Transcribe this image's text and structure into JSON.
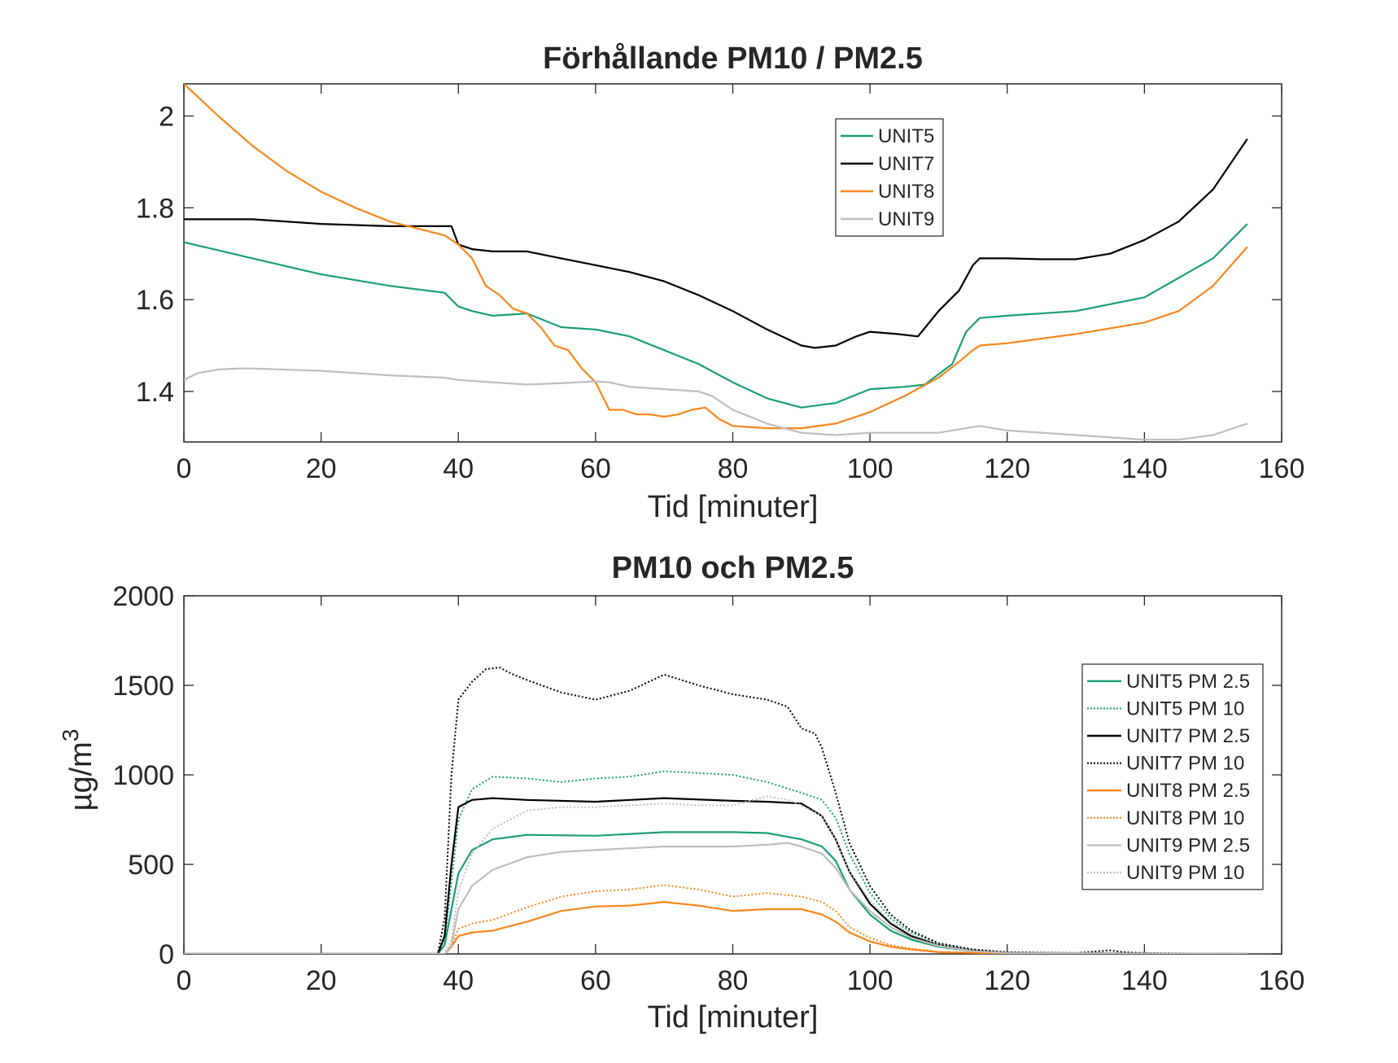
{
  "chart_data": [
    {
      "type": "line",
      "title": "Förhållande PM10 / PM2.5",
      "xlabel": "Tid [minuter]",
      "ylabel": "",
      "xlim": [
        0,
        160
      ],
      "ylim": [
        1.29,
        2.07
      ],
      "xticks": [
        "0",
        "20",
        "40",
        "60",
        "80",
        "100",
        "120",
        "140",
        "160"
      ],
      "yticks": [
        "1.4",
        "1.6",
        "1.8",
        "2"
      ],
      "grid": false,
      "legend": "top-right",
      "series": [
        {
          "name": "UNIT5",
          "color": "#1a9e77",
          "dash": "solid",
          "x": [
            0,
            10,
            20,
            30,
            38,
            40,
            42,
            45,
            50,
            55,
            60,
            65,
            70,
            75,
            80,
            85,
            90,
            95,
            100,
            105,
            108,
            112,
            114,
            116,
            120,
            130,
            140,
            150,
            155
          ],
          "y": [
            1.725,
            1.69,
            1.655,
            1.63,
            1.615,
            1.585,
            1.575,
            1.565,
            1.57,
            1.54,
            1.535,
            1.52,
            1.49,
            1.46,
            1.42,
            1.385,
            1.365,
            1.375,
            1.405,
            1.41,
            1.415,
            1.46,
            1.53,
            1.56,
            1.565,
            1.575,
            1.605,
            1.69,
            1.765
          ]
        },
        {
          "name": "UNIT7",
          "color": "#000000",
          "dash": "solid",
          "x": [
            0,
            5,
            10,
            20,
            30,
            39,
            40,
            42,
            45,
            50,
            55,
            60,
            65,
            70,
            75,
            80,
            85,
            90,
            92,
            95,
            98,
            100,
            104,
            107,
            110,
            113,
            115,
            116,
            120,
            125,
            130,
            135,
            140,
            145,
            150,
            155
          ],
          "y": [
            1.775,
            1.775,
            1.775,
            1.765,
            1.76,
            1.76,
            1.72,
            1.71,
            1.705,
            1.705,
            1.69,
            1.675,
            1.66,
            1.64,
            1.61,
            1.575,
            1.535,
            1.5,
            1.495,
            1.5,
            1.52,
            1.53,
            1.525,
            1.52,
            1.575,
            1.62,
            1.675,
            1.69,
            1.69,
            1.688,
            1.688,
            1.7,
            1.73,
            1.77,
            1.84,
            1.95
          ]
        },
        {
          "name": "UNIT8",
          "color": "#f7861c",
          "dash": "solid",
          "x": [
            0,
            5,
            10,
            15,
            20,
            25,
            30,
            38,
            40,
            42,
            44,
            46,
            48,
            50,
            52,
            54,
            56,
            58,
            60,
            62,
            64,
            66,
            68,
            70,
            72,
            74,
            76,
            78,
            80,
            85,
            90,
            95,
            100,
            105,
            110,
            113,
            115,
            116,
            120,
            130,
            140,
            145,
            150,
            155
          ],
          "y": [
            2.07,
            2.0,
            1.935,
            1.88,
            1.835,
            1.8,
            1.77,
            1.74,
            1.72,
            1.69,
            1.63,
            1.61,
            1.58,
            1.57,
            1.54,
            1.5,
            1.49,
            1.45,
            1.42,
            1.36,
            1.36,
            1.35,
            1.35,
            1.345,
            1.35,
            1.36,
            1.365,
            1.34,
            1.325,
            1.32,
            1.32,
            1.33,
            1.355,
            1.39,
            1.43,
            1.465,
            1.49,
            1.5,
            1.505,
            1.525,
            1.55,
            1.575,
            1.63,
            1.715
          ]
        },
        {
          "name": "UNIT9",
          "color": "#bdbdbd",
          "dash": "solid",
          "x": [
            0,
            2,
            5,
            8,
            10,
            20,
            30,
            38,
            40,
            45,
            50,
            55,
            60,
            62,
            65,
            70,
            75,
            77,
            80,
            85,
            90,
            95,
            100,
            105,
            110,
            114,
            116,
            120,
            130,
            140,
            145,
            150,
            155
          ],
          "y": [
            1.425,
            1.44,
            1.448,
            1.45,
            1.45,
            1.445,
            1.435,
            1.43,
            1.425,
            1.42,
            1.415,
            1.418,
            1.422,
            1.42,
            1.41,
            1.405,
            1.4,
            1.39,
            1.36,
            1.33,
            1.31,
            1.305,
            1.31,
            1.31,
            1.31,
            1.32,
            1.325,
            1.315,
            1.305,
            1.295,
            1.295,
            1.305,
            1.33
          ]
        }
      ]
    },
    {
      "type": "line",
      "title": "PM10 och PM2.5",
      "xlabel": "Tid [minuter]",
      "ylabel": "µg/m",
      "ylabel_sup": "3",
      "xlim": [
        0,
        160
      ],
      "ylim": [
        0,
        2000
      ],
      "xticks": [
        "0",
        "20",
        "40",
        "60",
        "80",
        "100",
        "120",
        "140",
        "160"
      ],
      "yticks": [
        "0",
        "500",
        "1000",
        "1500",
        "2000"
      ],
      "grid": false,
      "legend": "right",
      "series": [
        {
          "name": "UNIT5 PM 2.5",
          "color": "#1a9e77",
          "dash": "solid",
          "x": [
            0,
            37,
            38,
            39,
            40,
            42,
            45,
            50,
            60,
            70,
            80,
            85,
            90,
            93,
            95,
            97,
            100,
            103,
            106,
            110,
            115,
            120,
            155
          ],
          "y": [
            0,
            0,
            50,
            250,
            450,
            580,
            640,
            665,
            660,
            680,
            680,
            675,
            640,
            600,
            520,
            360,
            220,
            130,
            80,
            40,
            15,
            5,
            0
          ]
        },
        {
          "name": "UNIT5 PM 10",
          "color": "#1a9e77",
          "dash": "dot",
          "x": [
            0,
            37,
            38,
            39,
            40,
            42,
            45,
            50,
            55,
            60,
            65,
            70,
            75,
            80,
            85,
            90,
            93,
            95,
            97,
            100,
            103,
            106,
            110,
            115,
            120,
            155
          ],
          "y": [
            0,
            0,
            80,
            400,
            750,
            920,
            990,
            980,
            960,
            980,
            990,
            1020,
            1010,
            1000,
            960,
            900,
            860,
            760,
            560,
            340,
            200,
            120,
            60,
            20,
            8,
            0
          ]
        },
        {
          "name": "UNIT7 PM 2.5",
          "color": "#000000",
          "dash": "solid",
          "x": [
            0,
            37,
            38,
            39,
            40,
            42,
            45,
            50,
            60,
            70,
            80,
            85,
            90,
            93,
            95,
            97,
            100,
            103,
            106,
            110,
            115,
            120,
            155
          ],
          "y": [
            0,
            0,
            100,
            500,
            820,
            860,
            870,
            860,
            850,
            870,
            855,
            850,
            840,
            770,
            640,
            460,
            280,
            170,
            100,
            50,
            20,
            5,
            0
          ]
        },
        {
          "name": "UNIT7 PM 10",
          "color": "#000000",
          "dash": "dot",
          "x": [
            0,
            37,
            38,
            39,
            40,
            42,
            44,
            46,
            48,
            50,
            55,
            60,
            65,
            70,
            75,
            80,
            85,
            88,
            90,
            92,
            93,
            95,
            97,
            100,
            103,
            106,
            110,
            115,
            120,
            130,
            135,
            137,
            140,
            155
          ],
          "y": [
            0,
            0,
            200,
            1000,
            1420,
            1520,
            1590,
            1600,
            1560,
            1530,
            1460,
            1420,
            1470,
            1560,
            1500,
            1450,
            1420,
            1380,
            1260,
            1230,
            1150,
            900,
            620,
            380,
            220,
            130,
            60,
            25,
            10,
            5,
            20,
            10,
            5,
            0
          ]
        },
        {
          "name": "UNIT8 PM 2.5",
          "color": "#f7861c",
          "dash": "solid",
          "x": [
            0,
            38,
            39,
            40,
            42,
            45,
            50,
            55,
            60,
            65,
            70,
            75,
            80,
            85,
            90,
            93,
            95,
            97,
            100,
            103,
            106,
            110,
            120,
            155
          ],
          "y": [
            0,
            0,
            40,
            100,
            120,
            130,
            180,
            240,
            265,
            270,
            290,
            270,
            240,
            250,
            250,
            220,
            180,
            120,
            70,
            40,
            25,
            10,
            2,
            0
          ]
        },
        {
          "name": "UNIT8 PM 10",
          "color": "#f7861c",
          "dash": "dot",
          "x": [
            0,
            38,
            39,
            40,
            42,
            45,
            50,
            55,
            60,
            65,
            70,
            75,
            80,
            85,
            90,
            93,
            95,
            97,
            100,
            103,
            106,
            110,
            120,
            155
          ],
          "y": [
            0,
            0,
            50,
            140,
            170,
            190,
            260,
            320,
            350,
            360,
            385,
            360,
            320,
            340,
            320,
            290,
            240,
            150,
            90,
            50,
            30,
            12,
            3,
            0
          ]
        },
        {
          "name": "UNIT9 PM 2.5",
          "color": "#bdbdbd",
          "dash": "solid",
          "x": [
            0,
            38,
            39,
            40,
            42,
            45,
            50,
            55,
            60,
            65,
            70,
            75,
            80,
            85,
            88,
            90,
            93,
            95,
            97,
            100,
            103,
            106,
            110,
            115,
            120,
            155
          ],
          "y": [
            0,
            0,
            50,
            250,
            380,
            470,
            540,
            570,
            580,
            590,
            600,
            600,
            600,
            610,
            620,
            600,
            560,
            480,
            360,
            240,
            150,
            90,
            45,
            15,
            5,
            0
          ]
        },
        {
          "name": "UNIT9 PM 10",
          "color": "#bdbdbd",
          "dash": "dot",
          "x": [
            0,
            38,
            39,
            40,
            42,
            45,
            50,
            55,
            60,
            65,
            70,
            75,
            80,
            85,
            88,
            90,
            93,
            95,
            97,
            100,
            103,
            106,
            110,
            115,
            120,
            155
          ],
          "y": [
            0,
            0,
            80,
            350,
            560,
            700,
            800,
            820,
            820,
            830,
            840,
            830,
            830,
            880,
            860,
            830,
            770,
            640,
            460,
            300,
            180,
            110,
            55,
            20,
            6,
            0
          ]
        }
      ]
    }
  ]
}
